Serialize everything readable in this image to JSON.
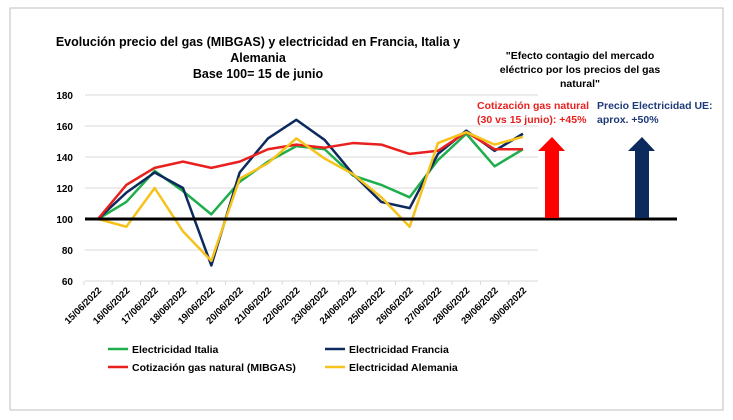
{
  "chart_data": {
    "type": "line",
    "title": [
      "Evolución precio del gas (MIBGAS) y electricidad en Francia, Italia y",
      "Alemania",
      "Base 100= 15 de junio"
    ],
    "xlabel": "",
    "ylabel": "",
    "ylim": [
      60,
      180
    ],
    "yticks": [
      60,
      80,
      100,
      120,
      140,
      160,
      180
    ],
    "grid": true,
    "legend_position": "bottom",
    "categories": [
      "15/06/2022",
      "16/06/2022",
      "17/06/2022",
      "18/06/2022",
      "19/06/2022",
      "20/06/2022",
      "21/06/2022",
      "22/06/2022",
      "23/06/2022",
      "24/06/2022",
      "25/06/2022",
      "26/06/2022",
      "27/06/2022",
      "28/06/2022",
      "29/06/2022",
      "30/06/2022"
    ],
    "series": [
      {
        "name": "Electricidad Italia",
        "color": "#1fae4b",
        "values": [
          100,
          111,
          131,
          118,
          103,
          124,
          137,
          147,
          145,
          128,
          122,
          114,
          138,
          155,
          134,
          145
        ]
      },
      {
        "name": "Electricidad Francia",
        "color": "#0d2a5e",
        "values": [
          100,
          117,
          130,
          120,
          70,
          130,
          152,
          164,
          151,
          129,
          111,
          107,
          142,
          157,
          144,
          155
        ]
      },
      {
        "name": "Cotización gas natural (MIBGAS)",
        "color": "#e8201e",
        "values": [
          100,
          122,
          133,
          137,
          133,
          137,
          145,
          148,
          146,
          149,
          148,
          142,
          144,
          156,
          145,
          145
        ]
      },
      {
        "name": "Electricidad Alemania",
        "color": "#f6c21c",
        "values": [
          100,
          95,
          120,
          92,
          73,
          126,
          136,
          152,
          139,
          129,
          114,
          95,
          149,
          156,
          148,
          153
        ]
      }
    ],
    "annotations": {
      "quote": [
        "\"Efecto contagio del mercado",
        "eléctrico por los precios del gas",
        "natural\""
      ],
      "gas": [
        "Cotización gas natural",
        "(30 vs 15 junio): +45%"
      ],
      "electricity": [
        "Precio Electricidad UE:",
        "aprox. +50%"
      ]
    }
  }
}
